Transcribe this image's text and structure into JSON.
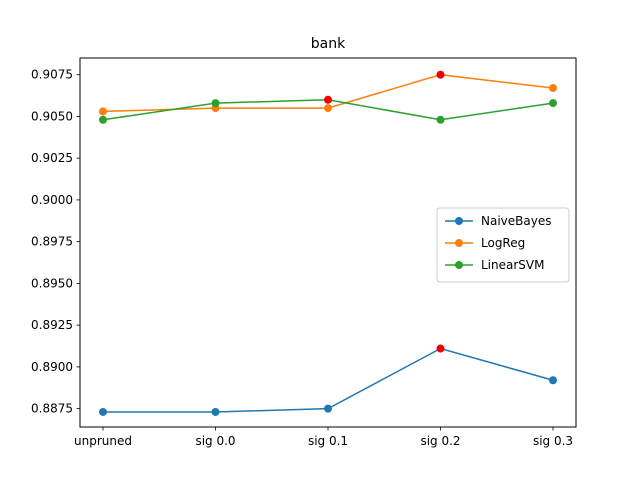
{
  "chart_data": {
    "type": "line",
    "title": "bank",
    "xlabel": "",
    "ylabel": "",
    "categories": [
      "unpruned",
      "sig 0.0",
      "sig 0.1",
      "sig 0.2",
      "sig 0.3"
    ],
    "ylim": [
      0.8864,
      0.9085
    ],
    "yticks": [
      0.8875,
      0.89,
      0.8925,
      0.895,
      0.8975,
      0.9,
      0.9025,
      0.905,
      0.9075
    ],
    "ytick_labels": [
      "0.8875",
      "0.8900",
      "0.8925",
      "0.8950",
      "0.8975",
      "0.9000",
      "0.9025",
      "0.9050",
      "0.9075"
    ],
    "grid": false,
    "legend_position": "center-right",
    "series": [
      {
        "name": "NaiveBayes",
        "color": "#1f77b4",
        "values": [
          0.8873,
          0.8873,
          0.8875,
          0.8911,
          0.8892
        ],
        "highlight_index": 3
      },
      {
        "name": "LogReg",
        "color": "#ff7f0e",
        "values": [
          0.9053,
          0.9055,
          0.9055,
          0.9075,
          0.9067
        ],
        "highlight_index": 3
      },
      {
        "name": "LinearSVM",
        "color": "#2ca02c",
        "values": [
          0.9048,
          0.9058,
          0.906,
          0.9048,
          0.9058
        ],
        "highlight_index": 2
      }
    ],
    "highlight_color": "#ee0000"
  }
}
